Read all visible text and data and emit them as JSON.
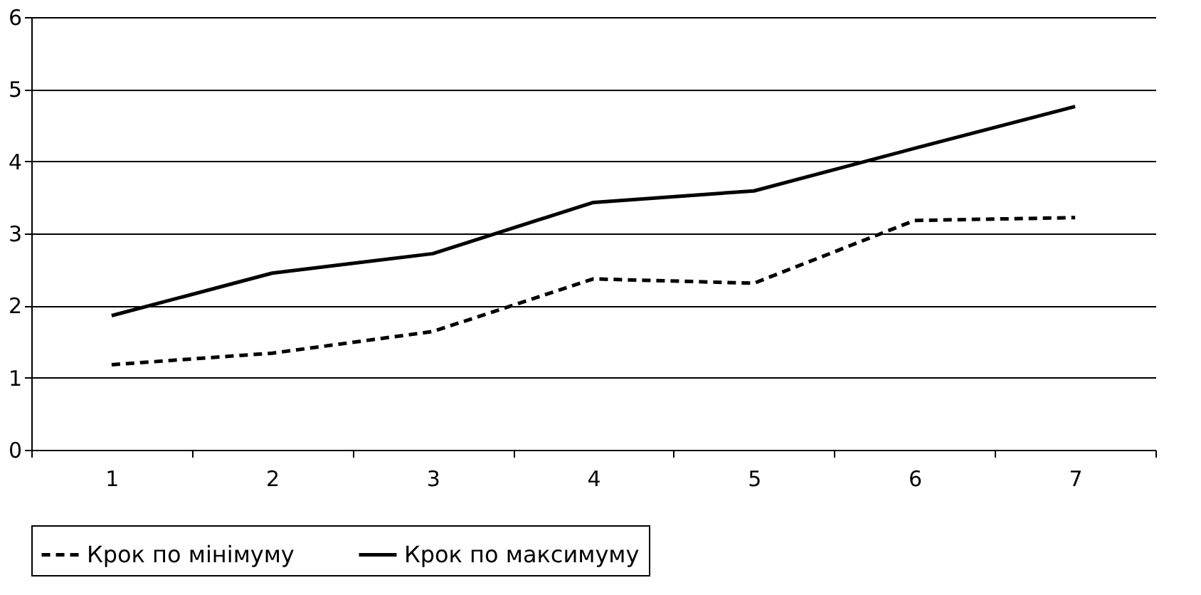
{
  "chart_data": {
    "type": "line",
    "categories": [
      "1",
      "2",
      "3",
      "4",
      "5",
      "6",
      "7"
    ],
    "series": [
      {
        "name": "Крок по мінімуму",
        "color": "#000000",
        "line_style": "dashed",
        "values": [
          1.18,
          1.34,
          1.64,
          2.37,
          2.31,
          3.18,
          3.22
        ]
      },
      {
        "name": "Крок по максимуму",
        "color": "#000000",
        "line_style": "solid",
        "values": [
          1.86,
          2.45,
          2.72,
          3.43,
          3.59,
          4.18,
          4.76
        ]
      }
    ],
    "ylim": [
      0,
      6
    ],
    "yticks": [
      0,
      1,
      2,
      3,
      4,
      5,
      6
    ],
    "grid": "y",
    "legend": "bottom"
  }
}
